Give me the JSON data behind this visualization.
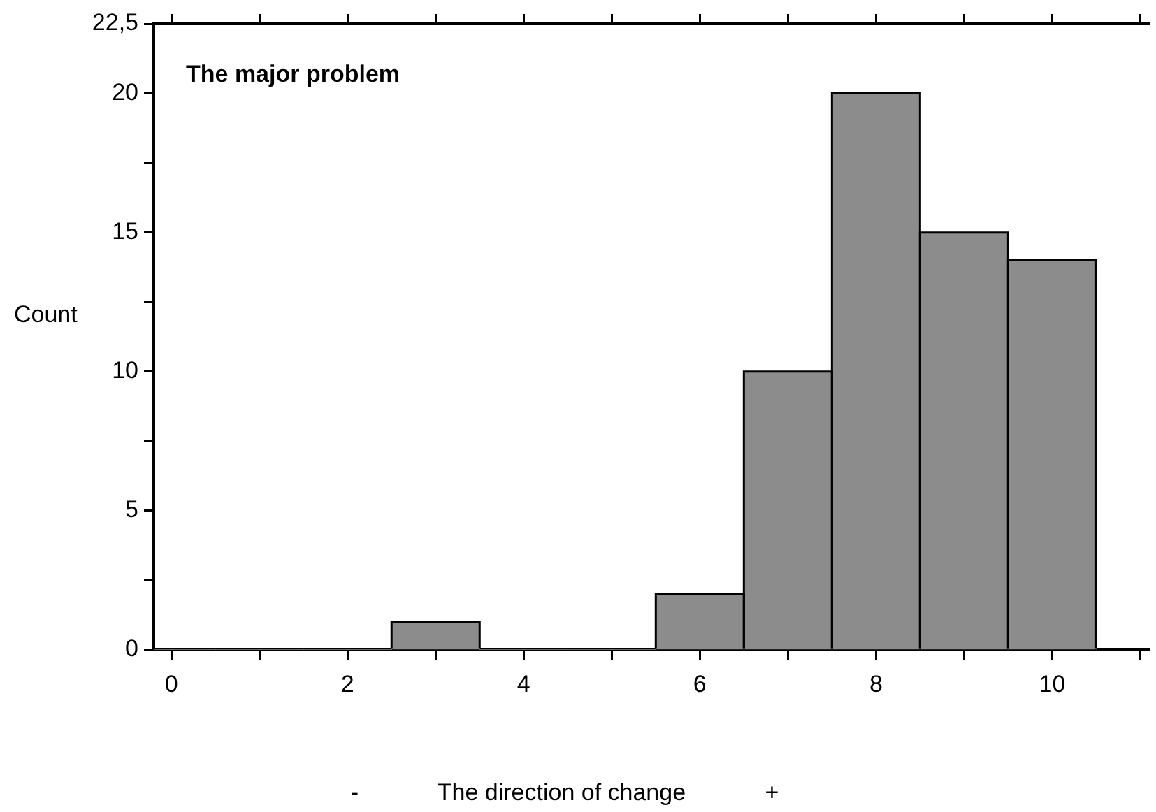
{
  "chart_data": {
    "type": "histogram",
    "title": "The major problem",
    "xlabel": "-            The direction of change            +",
    "ylabel": "Count",
    "bins": [
      -0.5,
      0.5,
      1.5,
      2.5,
      3.5,
      4.5,
      5.5,
      6.5,
      7.5,
      8.5,
      9.5,
      10.5
    ],
    "values": [
      0,
      0,
      0,
      1,
      0,
      0,
      2,
      10,
      20,
      15,
      14
    ],
    "color": "#8c8c8c",
    "xlim": [
      -0.2,
      11.1
    ],
    "xticks": [
      0,
      {
        "value": 1,
        "label": null
      },
      2,
      {
        "value": 3,
        "label": null
      },
      4,
      {
        "value": 5,
        "label": null
      },
      6,
      {
        "value": 7,
        "label": null
      },
      8,
      {
        "value": 9,
        "label": null
      },
      10,
      {
        "value": 11,
        "label": null
      }
    ],
    "ylim": [
      0,
      22.5
    ],
    "yticks": [
      0,
      {
        "value": 2.5,
        "label": null
      },
      5,
      {
        "value": 7.5,
        "label": null
      },
      10,
      {
        "value": 12.5,
        "label": null
      },
      15,
      {
        "value": 17.5,
        "label": null
      },
      20,
      {
        "value": 22.5,
        "label": "22,5"
      }
    ],
    "grid": false,
    "legend": false
  }
}
